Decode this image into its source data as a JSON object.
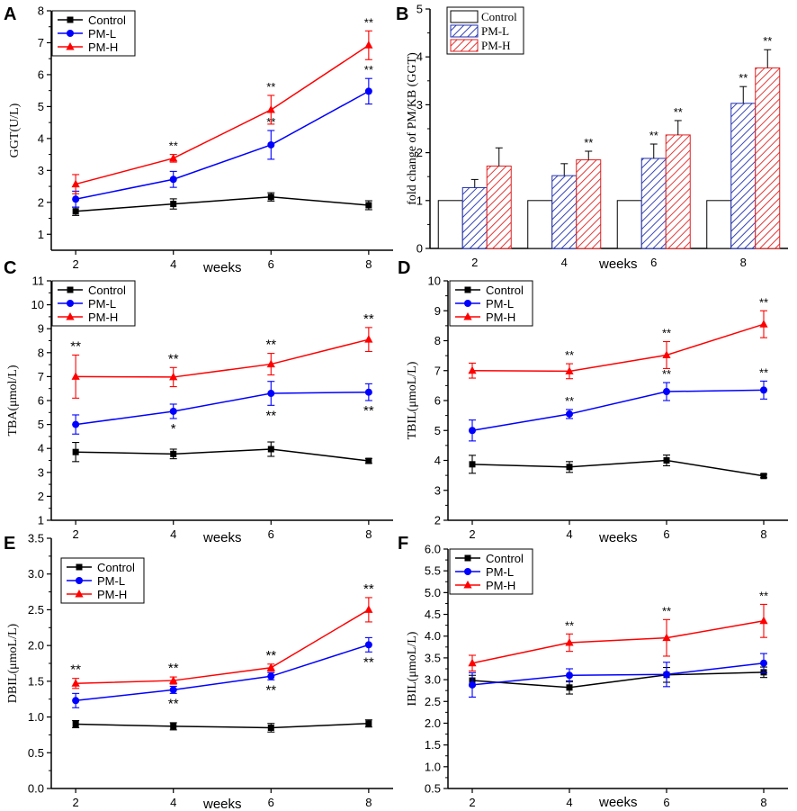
{
  "colors": {
    "control": "#000000",
    "pm_l": "#0000ff",
    "pm_h": "#ff0000",
    "axis": "#000000",
    "bar_control_fill": "#ffffff",
    "bar_pm_l_hatch": "#1f2fb0",
    "bar_pm_h_hatch": "#e02020"
  },
  "chart_data": [
    {
      "panel": "A",
      "type": "line",
      "title": "",
      "xlabel": "weeks",
      "ylabel": "GGT(U/L)",
      "x": [
        2,
        4,
        6,
        8
      ],
      "x_ticks": [
        "2",
        "4",
        "6",
        "8"
      ],
      "ylim": [
        0.5,
        8
      ],
      "y_ticks": [
        "1",
        "2",
        "3",
        "4",
        "5",
        "6",
        "7",
        "8"
      ],
      "legend": "top-left",
      "series": [
        {
          "name": "Control",
          "marker": "square",
          "values": [
            1.72,
            1.95,
            2.17,
            1.91
          ],
          "errors": [
            0.13,
            0.16,
            0.13,
            0.14
          ],
          "annotations": [
            "",
            "",
            "",
            ""
          ]
        },
        {
          "name": "PM-L",
          "marker": "circle",
          "values": [
            2.1,
            2.72,
            3.8,
            5.48
          ],
          "errors": [
            0.25,
            0.25,
            0.45,
            0.4
          ],
          "annotations": [
            "",
            "",
            "**",
            "**"
          ]
        },
        {
          "name": "PM-H",
          "marker": "triangle",
          "values": [
            2.57,
            3.38,
            4.9,
            6.92
          ],
          "errors": [
            0.3,
            0.12,
            0.45,
            0.45
          ],
          "annotations": [
            "",
            "**",
            "**",
            "**"
          ]
        }
      ]
    },
    {
      "panel": "B",
      "type": "bar",
      "title": "",
      "xlabel": "weeks",
      "ylabel": "fold change of  PM/KB (GGT)",
      "categories": [
        "2",
        "4",
        "6",
        "8"
      ],
      "ylim": [
        0,
        5
      ],
      "y_ticks": [
        "0",
        "1",
        "2",
        "3",
        "4",
        "5"
      ],
      "legend": "top-left",
      "series": [
        {
          "name": "Control",
          "values": [
            1.0,
            1.0,
            1.0,
            1.0
          ],
          "errors": [
            0,
            0,
            0,
            0
          ],
          "annotations": [
            "",
            "",
            "",
            ""
          ]
        },
        {
          "name": "PM-L",
          "values": [
            1.27,
            1.52,
            1.88,
            3.03
          ],
          "errors": [
            0.17,
            0.25,
            0.3,
            0.35
          ],
          "annotations": [
            "",
            "",
            "**",
            "**"
          ]
        },
        {
          "name": "PM-H",
          "values": [
            1.72,
            1.85,
            2.37,
            3.77
          ],
          "errors": [
            0.38,
            0.18,
            0.3,
            0.38
          ],
          "annotations": [
            "",
            "**",
            "**",
            "**"
          ]
        }
      ]
    },
    {
      "panel": "C",
      "type": "line",
      "title": "",
      "xlabel": "weeks",
      "ylabel": "TBA(μmol/L)",
      "x": [
        2,
        4,
        6,
        8
      ],
      "x_ticks": [
        "2",
        "4",
        "6",
        "8"
      ],
      "ylim": [
        1,
        11
      ],
      "y_ticks": [
        "1",
        "2",
        "3",
        "4",
        "5",
        "6",
        "7",
        "8",
        "9",
        "10",
        "11"
      ],
      "legend": "top-left",
      "series": [
        {
          "name": "Control",
          "marker": "square",
          "values": [
            3.85,
            3.77,
            3.97,
            3.48
          ],
          "errors": [
            0.4,
            0.2,
            0.3,
            0.1
          ],
          "annotations": [
            "",
            "",
            "",
            ""
          ]
        },
        {
          "name": "PM-L",
          "marker": "circle",
          "values": [
            5.0,
            5.55,
            6.3,
            6.35
          ],
          "errors": [
            0.4,
            0.3,
            0.5,
            0.35
          ],
          "annotations": [
            "",
            "*",
            "**",
            "**"
          ]
        },
        {
          "name": "PM-H",
          "marker": "triangle",
          "values": [
            7.0,
            6.98,
            7.52,
            8.55
          ],
          "errors": [
            0.9,
            0.4,
            0.45,
            0.5
          ],
          "annotations": [
            "**",
            "**",
            "**",
            "**"
          ]
        }
      ]
    },
    {
      "panel": "D",
      "type": "line",
      "title": "",
      "xlabel": "weeks",
      "ylabel": "TBIL(μmoL/L)",
      "x": [
        2,
        4,
        6,
        8
      ],
      "x_ticks": [
        "2",
        "4",
        "6",
        "8"
      ],
      "ylim": [
        2,
        10
      ],
      "y_ticks": [
        "2",
        "3",
        "4",
        "5",
        "6",
        "7",
        "8",
        "9",
        "10"
      ],
      "legend": "top-left",
      "series": [
        {
          "name": "Control",
          "marker": "square",
          "values": [
            3.87,
            3.78,
            4.0,
            3.48
          ],
          "errors": [
            0.3,
            0.18,
            0.18,
            0.06
          ],
          "annotations": [
            "",
            "",
            "",
            ""
          ]
        },
        {
          "name": "PM-L",
          "marker": "circle",
          "values": [
            5.0,
            5.55,
            6.3,
            6.35
          ],
          "errors": [
            0.35,
            0.15,
            0.3,
            0.3
          ],
          "annotations": [
            "",
            "**",
            "**",
            "**"
          ]
        },
        {
          "name": "PM-H",
          "marker": "triangle",
          "values": [
            7.0,
            6.98,
            7.52,
            8.55
          ],
          "errors": [
            0.25,
            0.25,
            0.45,
            0.45
          ],
          "annotations": [
            "",
            "**",
            "**",
            "**"
          ]
        }
      ]
    },
    {
      "panel": "E",
      "type": "line",
      "title": "",
      "xlabel": "weeks",
      "ylabel": "DBIL(μmoL/L)",
      "x": [
        2,
        4,
        6,
        8
      ],
      "x_ticks": [
        "2",
        "4",
        "6",
        "8"
      ],
      "ylim": [
        0,
        3.5
      ],
      "y_ticks": [
        "0.0",
        "0.5",
        "1.0",
        "1.5",
        "2.0",
        "2.5",
        "3.0",
        "3.5"
      ],
      "legend": "top-left",
      "series": [
        {
          "name": "Control",
          "marker": "square",
          "values": [
            0.9,
            0.87,
            0.85,
            0.91
          ],
          "errors": [
            0.05,
            0.05,
            0.06,
            0.05
          ],
          "annotations": [
            "",
            "",
            "",
            ""
          ]
        },
        {
          "name": "PM-L",
          "marker": "circle",
          "values": [
            1.23,
            1.38,
            1.57,
            2.01
          ],
          "errors": [
            0.1,
            0.05,
            0.05,
            0.1
          ],
          "annotations": [
            "",
            "**",
            "**",
            "**"
          ]
        },
        {
          "name": "PM-H",
          "marker": "triangle",
          "values": [
            1.47,
            1.51,
            1.69,
            2.5
          ],
          "errors": [
            0.07,
            0.05,
            0.05,
            0.17
          ],
          "annotations": [
            "**",
            "**",
            "**",
            "**"
          ]
        }
      ]
    },
    {
      "panel": "F",
      "type": "line",
      "title": "",
      "xlabel": "weeks",
      "ylabel": "IBIL(μmoL/L)",
      "x": [
        2,
        4,
        6,
        8
      ],
      "x_ticks": [
        "2",
        "4",
        "6",
        "8"
      ],
      "ylim": [
        0.5,
        6.0
      ],
      "y_ticks": [
        "0.5",
        "1.0",
        "1.5",
        "2.0",
        "2.5",
        "3.0",
        "3.5",
        "4.0",
        "4.5",
        "5.0",
        "5.5",
        "6.0"
      ],
      "legend": "top-left",
      "series": [
        {
          "name": "Control",
          "marker": "square",
          "values": [
            2.98,
            2.82,
            3.11,
            3.17
          ],
          "errors": [
            0.12,
            0.15,
            0.17,
            0.12
          ],
          "annotations": [
            "",
            "",
            "",
            ""
          ]
        },
        {
          "name": "PM-L",
          "marker": "circle",
          "values": [
            2.88,
            3.1,
            3.12,
            3.38
          ],
          "errors": [
            0.28,
            0.15,
            0.28,
            0.22
          ],
          "annotations": [
            "",
            "",
            "",
            ""
          ]
        },
        {
          "name": "PM-H",
          "marker": "triangle",
          "values": [
            3.38,
            3.85,
            3.96,
            4.35
          ],
          "errors": [
            0.18,
            0.2,
            0.42,
            0.38
          ],
          "annotations": [
            "",
            "**",
            "**",
            "**"
          ]
        }
      ]
    }
  ]
}
